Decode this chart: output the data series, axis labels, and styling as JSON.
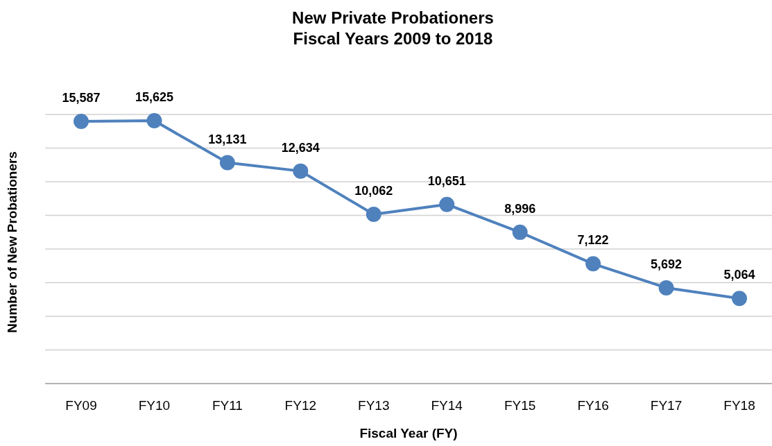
{
  "chart_data": {
    "type": "line",
    "title": "New Private Probationers\nFiscal Years 2009 to 2018",
    "xlabel": "Fiscal Year (FY)",
    "ylabel": "Number of New Probationers",
    "categories": [
      "FY09",
      "FY10",
      "FY11",
      "FY12",
      "FY13",
      "FY14",
      "FY15",
      "FY16",
      "FY17",
      "FY18"
    ],
    "series": [
      {
        "color": "#4f81bd",
        "values": [
          15587,
          15625,
          13131,
          12634,
          10062,
          10651,
          8996,
          7122,
          5692,
          5064
        ],
        "value_labels": [
          "15,587",
          "15,625",
          "13,131",
          "12,634",
          "10,062",
          "10,651",
          "8,996",
          "7,122",
          "5,692",
          "5,064"
        ]
      }
    ],
    "grid": "y",
    "tick_labels": "x",
    "marker": "circle",
    "line_style": "solid"
  }
}
